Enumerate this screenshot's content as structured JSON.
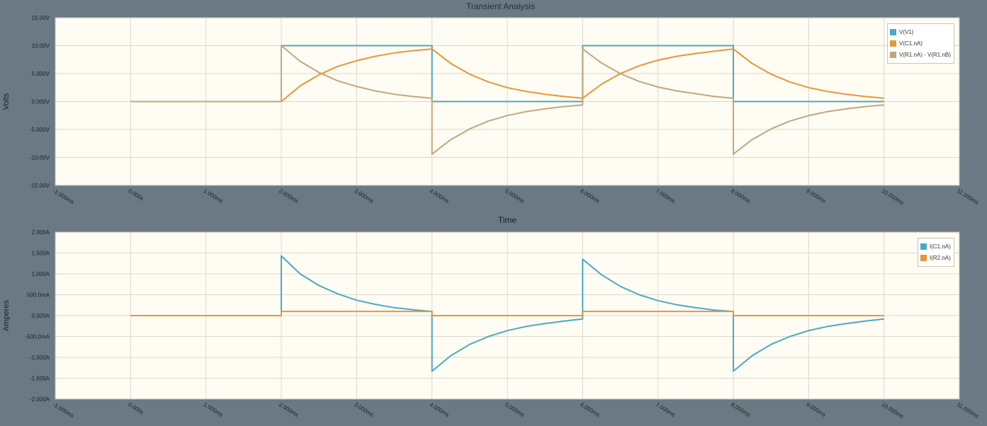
{
  "title": "Transient Analysis",
  "shared_xlabel": "Time",
  "chart_data": [
    {
      "type": "line",
      "ylabel": "Volts",
      "xlim": [
        -1,
        11
      ],
      "ylim": [
        -15,
        15
      ],
      "grid": true,
      "legend_position": "top-right",
      "x_ticks": [
        "-1.000ms",
        "0.000s",
        "1.000ms",
        "2.000ms",
        "3.000ms",
        "4.000ms",
        "5.000ms",
        "6.000ms",
        "7.000ms",
        "8.000ms",
        "9.000ms",
        "10.000ms",
        "11.000ms"
      ],
      "y_ticks": [
        {
          "v": 15,
          "label": "15.00V"
        },
        {
          "v": 10,
          "label": "10.00V"
        },
        {
          "v": 5,
          "label": "5.000V"
        },
        {
          "v": 0,
          "label": "0.000V"
        },
        {
          "v": -5,
          "label": "-5.000V"
        },
        {
          "v": -10,
          "label": "-10.00V"
        },
        {
          "v": -15,
          "label": "-15.00V"
        }
      ],
      "series": [
        {
          "name": "V(V1)",
          "color": "#4aaac2",
          "x": [
            0,
            2,
            2,
            4,
            4,
            6,
            6,
            8,
            8,
            10
          ],
          "y": [
            0,
            0,
            10,
            10,
            0,
            0,
            10,
            10,
            0,
            0
          ]
        },
        {
          "name": "V(C1.nA)",
          "color": "#e8963a",
          "x": [
            0,
            2,
            2.25,
            2.5,
            2.75,
            3,
            3.25,
            3.5,
            3.75,
            4,
            4.25,
            4.5,
            4.75,
            5,
            5.25,
            5.5,
            5.75,
            6,
            6.25,
            6.5,
            6.75,
            7,
            7.25,
            7.5,
            7.75,
            8,
            8.25,
            8.5,
            8.75,
            9,
            9.25,
            9.5,
            9.75,
            10
          ],
          "y": [
            0,
            0,
            2.8,
            4.8,
            6.3,
            7.3,
            8.1,
            8.7,
            9.1,
            9.4,
            6.8,
            4.9,
            3.5,
            2.5,
            1.8,
            1.3,
            0.9,
            0.6,
            3.1,
            5.0,
            6.4,
            7.4,
            8.1,
            8.6,
            9.0,
            9.4,
            6.8,
            4.9,
            3.5,
            2.5,
            1.8,
            1.3,
            0.9,
            0.6
          ]
        },
        {
          "name": "V(R1.nA) - V(R1.nB)",
          "color": "#c2a77e",
          "x": [
            0,
            2,
            2,
            2.25,
            2.5,
            2.75,
            3,
            3.25,
            3.5,
            3.75,
            4,
            4,
            4.25,
            4.5,
            4.75,
            5,
            5.25,
            5.5,
            5.75,
            6,
            6,
            6.25,
            6.5,
            6.75,
            7,
            7.25,
            7.5,
            7.75,
            8,
            8,
            8.25,
            8.5,
            8.75,
            9,
            9.25,
            9.5,
            9.75,
            10
          ],
          "y": [
            0,
            0,
            10,
            7.2,
            5.2,
            3.7,
            2.7,
            1.9,
            1.3,
            0.9,
            0.6,
            -9.4,
            -6.8,
            -4.9,
            -3.5,
            -2.5,
            -1.8,
            -1.3,
            -0.9,
            -0.6,
            9.4,
            6.9,
            5.0,
            3.6,
            2.6,
            1.9,
            1.4,
            0.9,
            0.6,
            -9.4,
            -6.8,
            -4.9,
            -3.5,
            -2.5,
            -1.8,
            -1.3,
            -0.9,
            -0.6
          ]
        }
      ]
    },
    {
      "type": "line",
      "ylabel": "Amperes",
      "xlim": [
        -1,
        11
      ],
      "ylim": [
        -2,
        2
      ],
      "grid": true,
      "legend_position": "top-right",
      "x_ticks": [
        "-1.000ms",
        "0.000s",
        "1.000ms",
        "2.000ms",
        "3.000ms",
        "4.000ms",
        "5.000ms",
        "6.000ms",
        "7.000ms",
        "8.000ms",
        "9.000ms",
        "10.000ms",
        "11.000ms"
      ],
      "y_ticks": [
        {
          "v": 2,
          "label": "2.000A"
        },
        {
          "v": 1.5,
          "label": "1.500A"
        },
        {
          "v": 1,
          "label": "1.000A"
        },
        {
          "v": 0.5,
          "label": "500.0mA"
        },
        {
          "v": 0,
          "label": "0.000A"
        },
        {
          "v": -0.5,
          "label": "-500.0mA"
        },
        {
          "v": -1,
          "label": "-1.000A"
        },
        {
          "v": -1.5,
          "label": "-1.500A"
        },
        {
          "v": -2,
          "label": "-2.000A"
        }
      ],
      "series": [
        {
          "name": "I(C1.nA)",
          "color": "#4aaac2",
          "x": [
            0,
            2,
            2,
            2.25,
            2.5,
            2.75,
            3,
            3.25,
            3.5,
            3.75,
            4,
            4,
            4.25,
            4.5,
            4.75,
            5,
            5.25,
            5.5,
            5.75,
            6,
            6,
            6.25,
            6.5,
            6.75,
            7,
            7.25,
            7.5,
            7.75,
            8,
            8,
            8.25,
            8.5,
            8.75,
            9,
            9.25,
            9.5,
            9.75,
            10
          ],
          "y": [
            0,
            0,
            1.43,
            1.0,
            0.72,
            0.52,
            0.37,
            0.27,
            0.19,
            0.14,
            0.1,
            -1.33,
            -0.96,
            -0.69,
            -0.5,
            -0.36,
            -0.26,
            -0.19,
            -0.13,
            -0.08,
            1.35,
            0.98,
            0.7,
            0.5,
            0.36,
            0.26,
            0.19,
            0.13,
            0.1,
            -1.33,
            -0.96,
            -0.69,
            -0.5,
            -0.36,
            -0.26,
            -0.19,
            -0.13,
            -0.08
          ]
        },
        {
          "name": "I(R2.nA)",
          "color": "#e8963a",
          "x": [
            0,
            2,
            2,
            4,
            4,
            6,
            6,
            8,
            8,
            10
          ],
          "y": [
            0,
            0,
            0.1,
            0.1,
            0,
            0,
            0.1,
            0.1,
            0,
            0
          ]
        }
      ]
    }
  ]
}
